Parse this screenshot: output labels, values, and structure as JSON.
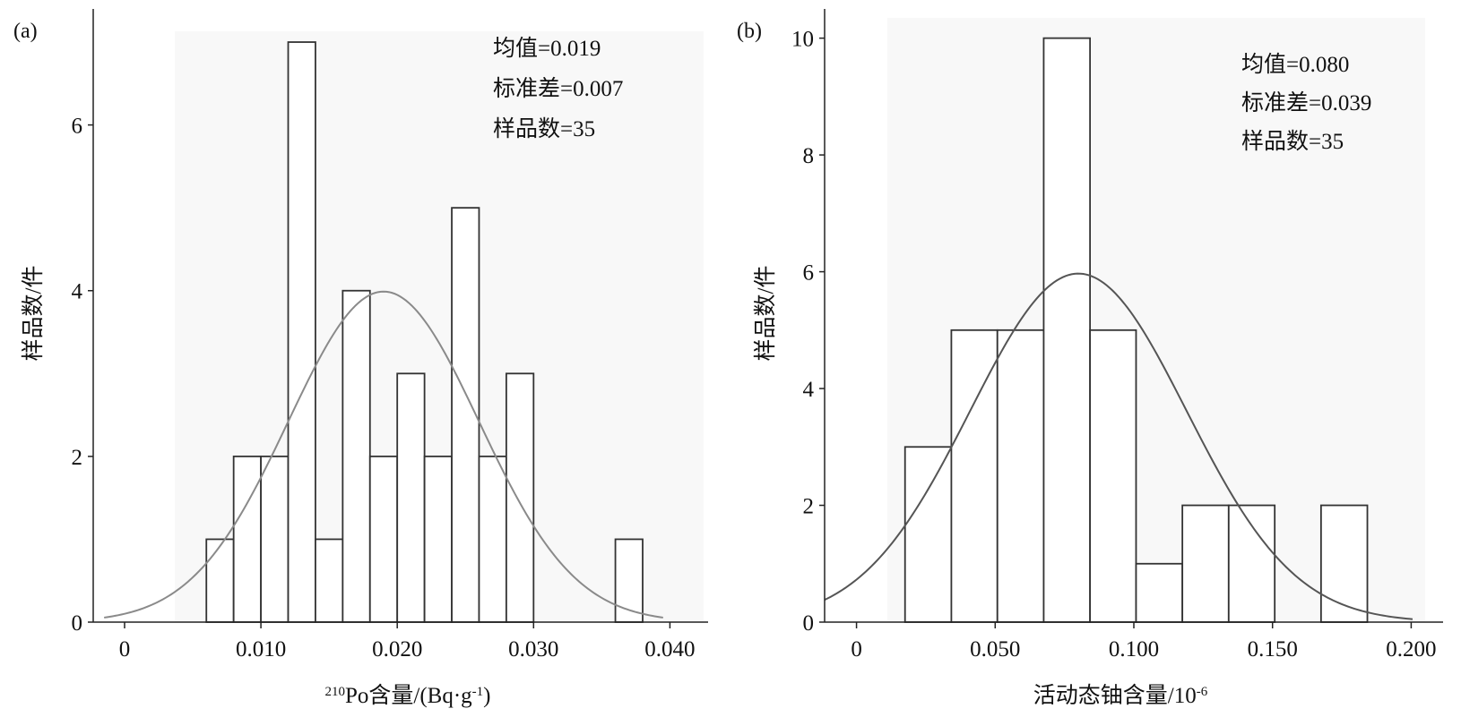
{
  "chart_data": [
    {
      "type": "bar",
      "panel_label": "(a)",
      "xlabel_sup": "210",
      "xlabel_main": "Po含量/(Bq·g",
      "xlabel_exp": "-1",
      "xlabel_tail": ")",
      "ylabel": "样品数/件",
      "xlim": [
        -0.0023,
        0.0428
      ],
      "ylim": [
        0,
        7.4
      ],
      "xticks": [
        0,
        0.01,
        0.02,
        0.03,
        0.04
      ],
      "xtick_labels": [
        "0",
        "0.010",
        "0.020",
        "0.030",
        "0.040"
      ],
      "yticks": [
        0,
        2,
        4,
        6
      ],
      "ytick_labels": [
        "0",
        "2",
        "4",
        "6"
      ],
      "bins": [
        {
          "x0": 0.006,
          "x1": 0.008,
          "count": 1
        },
        {
          "x0": 0.008,
          "x1": 0.01,
          "count": 2
        },
        {
          "x0": 0.01,
          "x1": 0.012,
          "count": 2
        },
        {
          "x0": 0.012,
          "x1": 0.014,
          "count": 7
        },
        {
          "x0": 0.014,
          "x1": 0.016,
          "count": 1
        },
        {
          "x0": 0.016,
          "x1": 0.018,
          "count": 4
        },
        {
          "x0": 0.018,
          "x1": 0.02,
          "count": 2
        },
        {
          "x0": 0.02,
          "x1": 0.022,
          "count": 3
        },
        {
          "x0": 0.022,
          "x1": 0.024,
          "count": 2
        },
        {
          "x0": 0.024,
          "x1": 0.026,
          "count": 5
        },
        {
          "x0": 0.026,
          "x1": 0.028,
          "count": 2
        },
        {
          "x0": 0.028,
          "x1": 0.03,
          "count": 3
        },
        {
          "x0": 0.036,
          "x1": 0.038,
          "count": 1
        }
      ],
      "normal_curve": {
        "mean": 0.019,
        "sd": 0.007,
        "n": 35,
        "bin_width": 0.002,
        "x_range": [
          -0.0015,
          0.0395
        ]
      },
      "stats": [
        "均值=0.019",
        "标准差=0.007",
        "样品数=35"
      ]
    },
    {
      "type": "bar",
      "panel_label": "(b)",
      "xlabel_main": "活动态铀含量/10",
      "xlabel_exp": "-6",
      "ylabel": "样品数/件",
      "xlim": [
        -0.0115,
        0.2115
      ],
      "ylim": [
        0,
        10.5
      ],
      "xticks": [
        0,
        0.05,
        0.1,
        0.15,
        0.2
      ],
      "xtick_labels": [
        "0",
        "0.050",
        "0.100",
        "0.150",
        "0.200"
      ],
      "yticks": [
        0,
        2,
        4,
        6,
        8,
        10
      ],
      "ytick_labels": [
        "0",
        "2",
        "4",
        "6",
        "8",
        "10"
      ],
      "bins": [
        {
          "x0": 0.0175,
          "x1": 0.0342,
          "count": 3
        },
        {
          "x0": 0.0342,
          "x1": 0.0508,
          "count": 5
        },
        {
          "x0": 0.0508,
          "x1": 0.0675,
          "count": 5
        },
        {
          "x0": 0.0675,
          "x1": 0.0842,
          "count": 10
        },
        {
          "x0": 0.0842,
          "x1": 0.1008,
          "count": 5
        },
        {
          "x0": 0.1008,
          "x1": 0.1175,
          "count": 1
        },
        {
          "x0": 0.1175,
          "x1": 0.1342,
          "count": 2
        },
        {
          "x0": 0.1342,
          "x1": 0.1508,
          "count": 2
        },
        {
          "x0": 0.1675,
          "x1": 0.1842,
          "count": 2
        }
      ],
      "normal_curve": {
        "mean": 0.08,
        "sd": 0.039,
        "n": 35,
        "bin_width": 0.01667,
        "x_range": [
          -0.0115,
          0.2005
        ]
      },
      "stats": [
        "均值=0.080",
        "标准差=0.039",
        "样品数=35"
      ]
    }
  ]
}
